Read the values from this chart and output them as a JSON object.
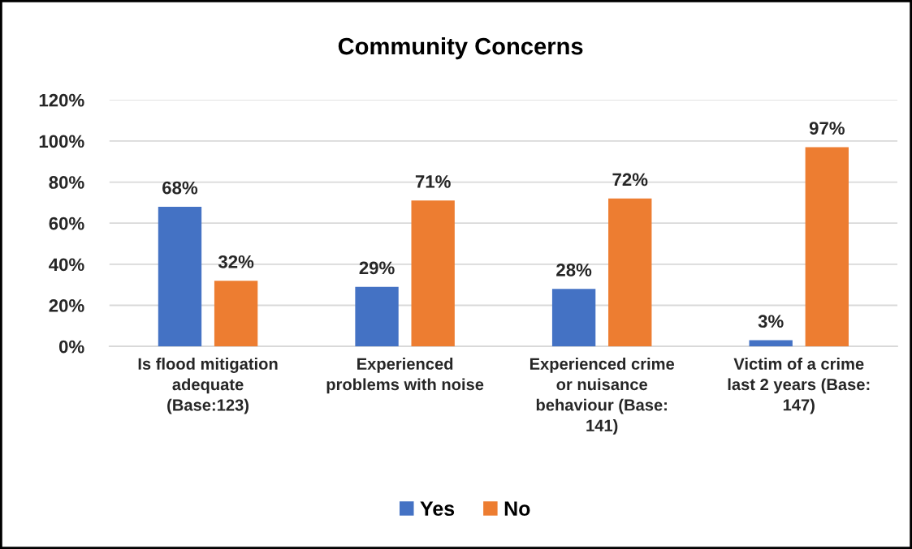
{
  "chart_data": {
    "type": "bar",
    "title": "Community Concerns",
    "categories": [
      "Is flood mitigation\nadequate\n(Base:123)",
      "Experienced\nproblems with noise",
      "Experienced crime\nor nuisance\nbehaviour (Base:\n141)",
      "Victim of a crime\nlast 2 years (Base:\n147)"
    ],
    "series": [
      {
        "name": "Yes",
        "color": "#4472c4",
        "values": [
          68,
          29,
          28,
          3
        ],
        "value_labels": [
          "68%",
          "29%",
          "28%",
          "3%"
        ]
      },
      {
        "name": "No",
        "color": "#ed7d31",
        "values": [
          32,
          71,
          72,
          97
        ],
        "value_labels": [
          "32%",
          "71%",
          "72%",
          "97%"
        ]
      }
    ],
    "ylim": [
      0,
      120
    ],
    "yticks": [
      {
        "value": 0,
        "label": "0%"
      },
      {
        "value": 20,
        "label": "20%"
      },
      {
        "value": 40,
        "label": "40%"
      },
      {
        "value": 60,
        "label": "60%"
      },
      {
        "value": 80,
        "label": "80%"
      },
      {
        "value": 100,
        "label": "100%"
      },
      {
        "value": 120,
        "label": "120%"
      }
    ],
    "grid": "y",
    "legend": "bottom"
  }
}
